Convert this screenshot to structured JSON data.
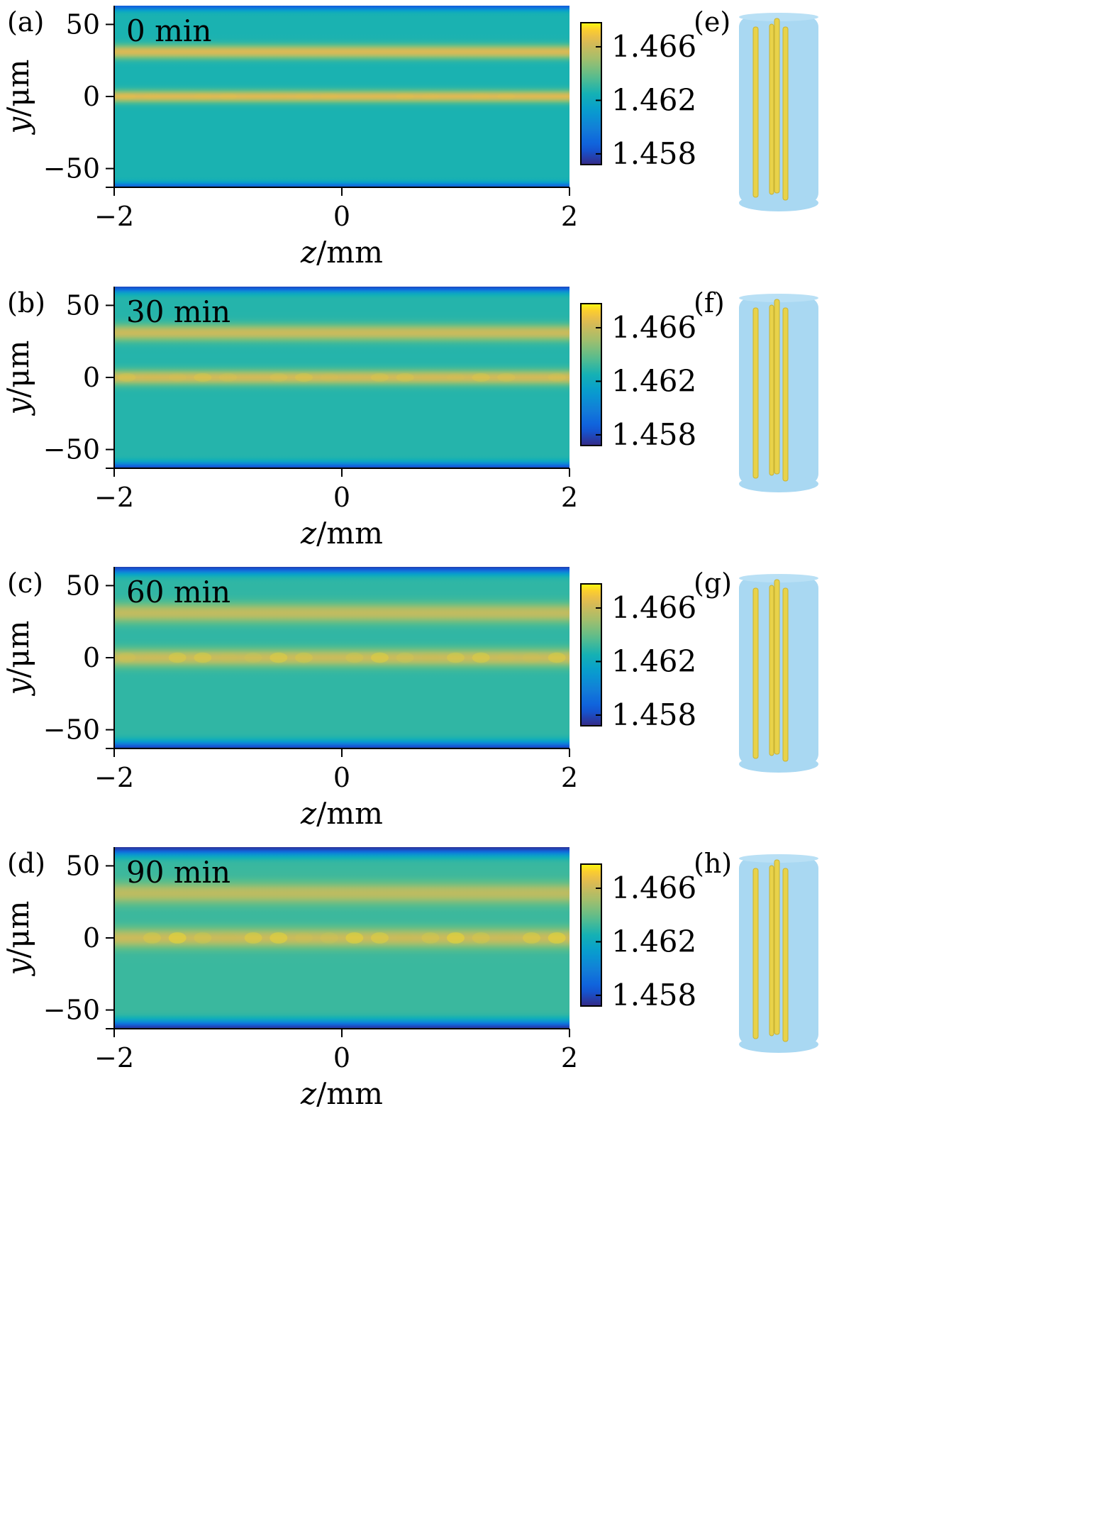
{
  "figure": {
    "description_free": true
  },
  "chart_data": [
    {
      "type": "heatmap",
      "panel_tag": "(a)",
      "time_label": "0 min",
      "xlabel_var": "z",
      "xlabel_unit": "/mm",
      "ylabel_var": "y",
      "ylabel_unit": "/μm",
      "x_ticks": [
        -2,
        0,
        2
      ],
      "x_tick_labels": [
        "−2",
        "0",
        "2"
      ],
      "y_ticks": [
        50,
        0,
        -50
      ],
      "y_tick_labels": [
        "50",
        "0",
        "−50"
      ],
      "xlim": [
        -2,
        2
      ],
      "ylim": [
        -63,
        63
      ],
      "colorbar": {
        "ticks": [
          1.466,
          1.462,
          1.458
        ],
        "tick_labels": [
          "1.466",
          "1.462",
          "1.458"
        ],
        "range": [
          1.4572,
          1.4678
        ]
      },
      "background_index": 1.4626,
      "cores": [
        {
          "y_um": 31,
          "index": 1.4664,
          "width_um": 4.5
        },
        {
          "y_um": 0,
          "index": 1.4665,
          "width_um": 4
        }
      ],
      "edge_index": 1.4585,
      "core0_modulation": 0.1
    },
    {
      "type": "heatmap",
      "panel_tag": "(b)",
      "time_label": "30 min",
      "xlabel_var": "z",
      "xlabel_unit": "/mm",
      "ylabel_var": "y",
      "ylabel_unit": "/μm",
      "x_ticks": [
        -2,
        0,
        2
      ],
      "x_tick_labels": [
        "−2",
        "0",
        "2"
      ],
      "y_ticks": [
        50,
        0,
        -50
      ],
      "y_tick_labels": [
        "50",
        "0",
        "−50"
      ],
      "xlim": [
        -2,
        2
      ],
      "ylim": [
        -63,
        63
      ],
      "colorbar": {
        "ticks": [
          1.466,
          1.462,
          1.458
        ],
        "tick_labels": [
          "1.466",
          "1.462",
          "1.458"
        ],
        "range": [
          1.4572,
          1.4678
        ]
      },
      "background_index": 1.4628,
      "cores": [
        {
          "y_um": 31,
          "index": 1.466,
          "width_um": 5.5
        },
        {
          "y_um": 0,
          "index": 1.4662,
          "width_um": 5
        }
      ],
      "edge_index": 1.458,
      "core0_modulation": 0.3
    },
    {
      "type": "heatmap",
      "panel_tag": "(c)",
      "time_label": "60 min",
      "xlabel_var": "z",
      "xlabel_unit": "/mm",
      "ylabel_var": "y",
      "ylabel_unit": "/μm",
      "x_ticks": [
        -2,
        0,
        2
      ],
      "x_tick_labels": [
        "−2",
        "0",
        "2"
      ],
      "y_ticks": [
        50,
        0,
        -50
      ],
      "y_tick_labels": [
        "50",
        "0",
        "−50"
      ],
      "xlim": [
        -2,
        2
      ],
      "ylim": [
        -63,
        63
      ],
      "colorbar": {
        "ticks": [
          1.466,
          1.462,
          1.458
        ],
        "tick_labels": [
          "1.466",
          "1.462",
          "1.458"
        ],
        "range": [
          1.4572,
          1.4678
        ]
      },
      "background_index": 1.463,
      "cores": [
        {
          "y_um": 31,
          "index": 1.4658,
          "width_um": 6.5
        },
        {
          "y_um": 0,
          "index": 1.466,
          "width_um": 6
        }
      ],
      "edge_index": 1.4578,
      "core0_modulation": 0.5
    },
    {
      "type": "heatmap",
      "panel_tag": "(d)",
      "time_label": "90 min",
      "xlabel_var": "z",
      "xlabel_unit": "/mm",
      "ylabel_var": "y",
      "ylabel_unit": "/μm",
      "x_ticks": [
        -2,
        0,
        2
      ],
      "x_tick_labels": [
        "−2",
        "0",
        "2"
      ],
      "y_ticks": [
        50,
        0,
        -50
      ],
      "y_tick_labels": [
        "50",
        "0",
        "−50"
      ],
      "xlim": [
        -2,
        2
      ],
      "ylim": [
        -63,
        63
      ],
      "colorbar": {
        "ticks": [
          1.466,
          1.462,
          1.458
        ],
        "tick_labels": [
          "1.466",
          "1.462",
          "1.458"
        ],
        "range": [
          1.4572,
          1.4678
        ]
      },
      "background_index": 1.4632,
      "cores": [
        {
          "y_um": 31,
          "index": 1.4657,
          "width_um": 7
        },
        {
          "y_um": 0,
          "index": 1.466,
          "width_um": 6.5
        }
      ],
      "edge_index": 1.4575,
      "core0_modulation": 0.7
    }
  ],
  "renders": [
    {
      "panel_tag": "(e)"
    },
    {
      "panel_tag": "(f)"
    },
    {
      "panel_tag": "(g)"
    },
    {
      "panel_tag": "(h)"
    }
  ],
  "colors": {
    "render_fiber": "#a9d8f2",
    "render_core": "#e8d24a",
    "render_core_edge": "#c9b233"
  }
}
